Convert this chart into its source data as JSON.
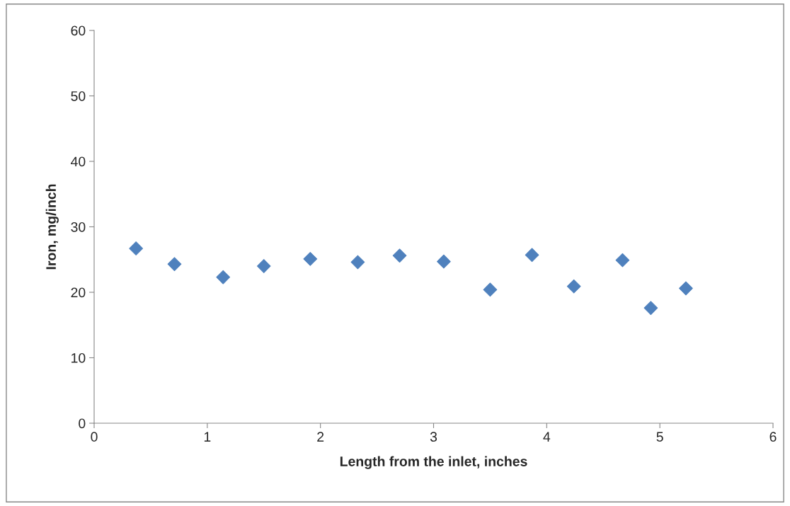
{
  "chart_data": {
    "type": "scatter",
    "xlabel": "Length from the inlet, inches",
    "ylabel": "Iron, mg/inch",
    "x": [
      0.37,
      0.71,
      1.14,
      1.5,
      1.91,
      2.33,
      2.7,
      3.09,
      3.5,
      3.87,
      4.24,
      4.67,
      4.92,
      5.23
    ],
    "values": [
      26.7,
      24.3,
      22.3,
      24.0,
      25.1,
      24.6,
      25.6,
      24.7,
      20.4,
      25.7,
      20.9,
      24.9,
      17.6,
      20.6
    ],
    "color": "#4f81bd",
    "marker": "diamond",
    "xlim": [
      0,
      6
    ],
    "xticks": [
      0,
      1,
      2,
      3,
      4,
      5,
      6
    ],
    "ylim": [
      0,
      60
    ],
    "yticks": [
      0,
      10,
      20,
      30,
      40,
      50,
      60
    ],
    "grid": false,
    "legend": false
  }
}
